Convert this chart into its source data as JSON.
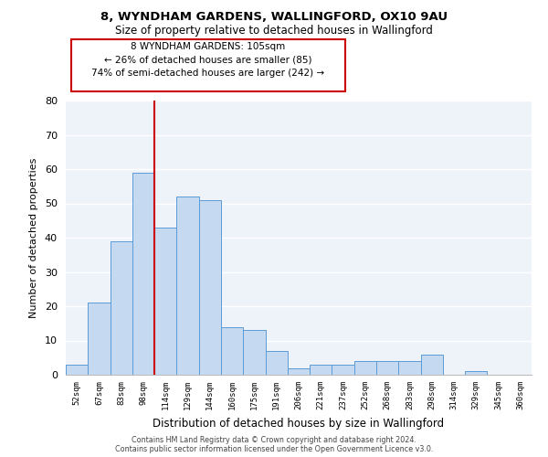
{
  "title1": "8, WYNDHAM GARDENS, WALLINGFORD, OX10 9AU",
  "title2": "Size of property relative to detached houses in Wallingford",
  "xlabel": "Distribution of detached houses by size in Wallingford",
  "ylabel": "Number of detached properties",
  "bin_labels": [
    "52sqm",
    "67sqm",
    "83sqm",
    "98sqm",
    "114sqm",
    "129sqm",
    "144sqm",
    "160sqm",
    "175sqm",
    "191sqm",
    "206sqm",
    "221sqm",
    "237sqm",
    "252sqm",
    "268sqm",
    "283sqm",
    "298sqm",
    "314sqm",
    "329sqm",
    "345sqm",
    "360sqm"
  ],
  "bar_heights": [
    3,
    21,
    39,
    59,
    43,
    52,
    51,
    14,
    13,
    7,
    2,
    3,
    3,
    4,
    4,
    4,
    6,
    0,
    1,
    0,
    0
  ],
  "bar_color": "#c5d9f1",
  "bar_edge_color": "#5b9bd5",
  "vline_color": "#cc0000",
  "annotation_title": "8 WYNDHAM GARDENS: 105sqm",
  "annotation_line1": "← 26% of detached houses are smaller (85)",
  "annotation_line2": "74% of semi-detached houses are larger (242) →",
  "annotation_box_edge": "#cc0000",
  "ylim": [
    0,
    80
  ],
  "yticks": [
    0,
    10,
    20,
    30,
    40,
    50,
    60,
    70,
    80
  ],
  "footer1": "Contains HM Land Registry data © Crown copyright and database right 2024.",
  "footer2": "Contains public sector information licensed under the Open Government Licence v3.0."
}
